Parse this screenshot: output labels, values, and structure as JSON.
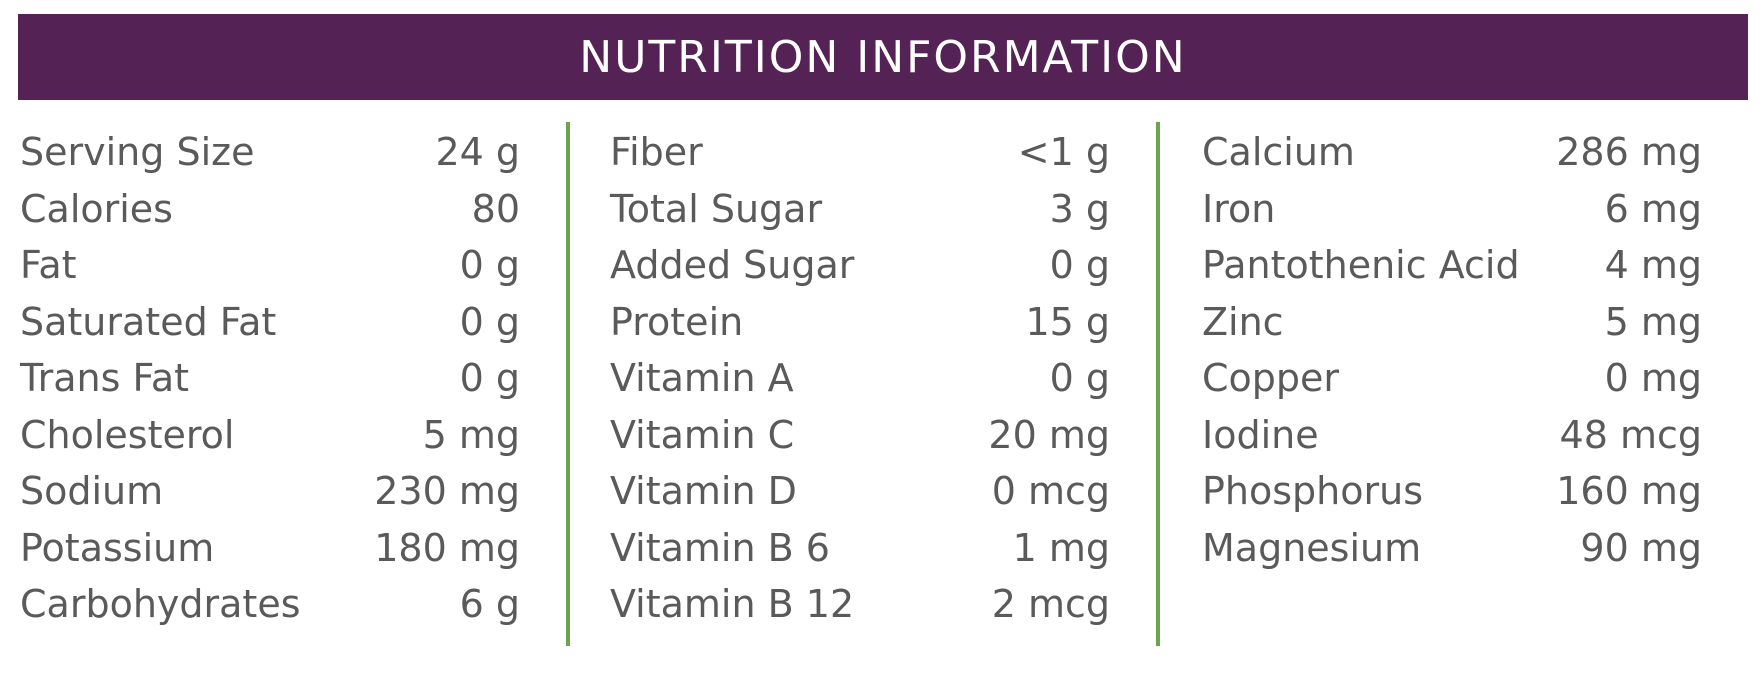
{
  "header": {
    "title": "NUTRITION INFORMATION"
  },
  "colors": {
    "header_bg": "#552255",
    "divider": "#6ba34f",
    "text": "#5a5a5a"
  },
  "columns": [
    {
      "rows": [
        {
          "label": "Serving Size",
          "value": "24 g"
        },
        {
          "label": "Calories",
          "value": "80"
        },
        {
          "label": "Fat",
          "value": "0 g"
        },
        {
          "label": "Saturated Fat",
          "value": "0 g"
        },
        {
          "label": "Trans Fat",
          "value": "0 g"
        },
        {
          "label": "Cholesterol",
          "value": "5 mg"
        },
        {
          "label": "Sodium",
          "value": "230 mg"
        },
        {
          "label": "Potassium",
          "value": "180 mg"
        },
        {
          "label": "Carbohydrates",
          "value": "6 g"
        }
      ]
    },
    {
      "rows": [
        {
          "label": "Fiber",
          "value": "<1 g"
        },
        {
          "label": "Total Sugar",
          "value": "3 g"
        },
        {
          "label": "Added Sugar",
          "value": "0 g"
        },
        {
          "label": "Protein",
          "value": "15 g"
        },
        {
          "label": "Vitamin A",
          "value": "0 g"
        },
        {
          "label": "Vitamin C",
          "value": "20 mg"
        },
        {
          "label": "Vitamin D",
          "value": "0 mcg"
        },
        {
          "label": "Vitamin B 6",
          "value": "1 mg"
        },
        {
          "label": "Vitamin B 12",
          "value": "2 mcg"
        }
      ]
    },
    {
      "rows": [
        {
          "label": "Calcium",
          "value": "286 mg"
        },
        {
          "label": "Iron",
          "value": "6 mg"
        },
        {
          "label": "Pantothenic Acid",
          "value": "4 mg"
        },
        {
          "label": "Zinc",
          "value": "5 mg"
        },
        {
          "label": "Copper",
          "value": "0 mg"
        },
        {
          "label": "Iodine",
          "value": "48 mcg"
        },
        {
          "label": "Phosphorus",
          "value": "160 mg"
        },
        {
          "label": "Magnesium",
          "value": "90 mg"
        }
      ]
    }
  ]
}
